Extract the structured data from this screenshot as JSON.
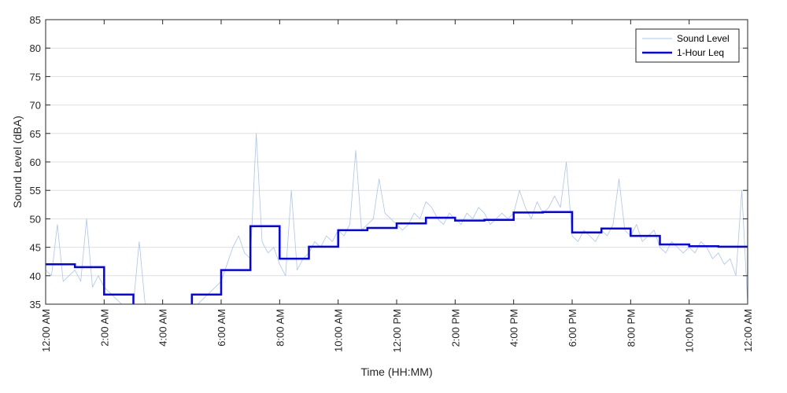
{
  "chart_data": {
    "type": "line",
    "title": "",
    "xlabel": "Time (HH:MM)",
    "ylabel": "Sound Level (dBA)",
    "ylim": [
      35,
      85
    ],
    "xlim_hours": [
      0,
      24
    ],
    "y_ticks": [
      "35",
      "40",
      "45",
      "50",
      "55",
      "60",
      "65",
      "70",
      "75",
      "80",
      "85"
    ],
    "x_ticks": [
      {
        "hour": 0,
        "label": "12:00 AM"
      },
      {
        "hour": 2,
        "label": "2:00 AM"
      },
      {
        "hour": 4,
        "label": "4:00 AM"
      },
      {
        "hour": 6,
        "label": "6:00 AM"
      },
      {
        "hour": 8,
        "label": "8:00 AM"
      },
      {
        "hour": 10,
        "label": "10:00 AM"
      },
      {
        "hour": 12,
        "label": "12:00 PM"
      },
      {
        "hour": 14,
        "label": "2:00 PM"
      },
      {
        "hour": 16,
        "label": "4:00 PM"
      },
      {
        "hour": 18,
        "label": "6:00 PM"
      },
      {
        "hour": 20,
        "label": "8:00 PM"
      },
      {
        "hour": 22,
        "label": "10:00 PM"
      },
      {
        "hour": 24,
        "label": "12:00 AM"
      }
    ],
    "grid": "horizontal",
    "legend_position": "top-right",
    "series": [
      {
        "name": "Sound Level",
        "color": "#a9c4f5",
        "style": "thin-line",
        "x_hours": [
          0,
          0.2,
          0.4,
          0.6,
          0.8,
          1,
          1.2,
          1.4,
          1.6,
          1.8,
          2,
          2.2,
          2.4,
          2.6,
          2.8,
          3,
          3.2,
          3.4,
          3.6,
          3.8,
          4,
          4.2,
          4.4,
          4.6,
          4.8,
          5,
          5.2,
          5.4,
          5.6,
          5.8,
          6,
          6.2,
          6.4,
          6.6,
          6.8,
          7,
          7.2,
          7.4,
          7.6,
          7.8,
          8,
          8.2,
          8.4,
          8.6,
          8.8,
          9,
          9.2,
          9.4,
          9.6,
          9.8,
          10,
          10.2,
          10.4,
          10.6,
          10.8,
          11,
          11.2,
          11.4,
          11.6,
          11.8,
          12,
          12.2,
          12.4,
          12.6,
          12.8,
          13,
          13.2,
          13.4,
          13.6,
          13.8,
          14,
          14.2,
          14.4,
          14.6,
          14.8,
          15,
          15.2,
          15.4,
          15.6,
          15.8,
          16,
          16.2,
          16.4,
          16.6,
          16.8,
          17,
          17.2,
          17.4,
          17.6,
          17.8,
          18,
          18.2,
          18.4,
          18.6,
          18.8,
          19,
          19.2,
          19.4,
          19.6,
          19.8,
          20,
          20.2,
          20.4,
          20.6,
          20.8,
          21,
          21.2,
          21.4,
          21.6,
          21.8,
          22,
          22.2,
          22.4,
          22.6,
          22.8,
          23,
          23.2,
          23.4,
          23.6,
          23.8,
          24
        ],
        "values": [
          41,
          40,
          49,
          39,
          40,
          41,
          39,
          50,
          38,
          40,
          38,
          37,
          36,
          35,
          35,
          35,
          46,
          35,
          35,
          35,
          35,
          35,
          35,
          35,
          35,
          35,
          35,
          36,
          37,
          38,
          39,
          42,
          45,
          47,
          44,
          43,
          65,
          46,
          44,
          45,
          42,
          40,
          55,
          41,
          43,
          44,
          46,
          45,
          47,
          46,
          48,
          47,
          49,
          62,
          48,
          49,
          50,
          57,
          51,
          50,
          49,
          48,
          49,
          51,
          50,
          53,
          52,
          50,
          49,
          51,
          50,
          49,
          51,
          50,
          52,
          51,
          49,
          50,
          51,
          50,
          51,
          55,
          52,
          50,
          53,
          51,
          52,
          54,
          52,
          60,
          47,
          46,
          48,
          47,
          46,
          48,
          47,
          49,
          57,
          48,
          47,
          49,
          46,
          47,
          48,
          45,
          44,
          46,
          45,
          44,
          45,
          44,
          46,
          45,
          43,
          44,
          42,
          43,
          40,
          55,
          35
        ]
      },
      {
        "name": "1-Hour Leq",
        "color": "#0000ff",
        "style": "step",
        "hour_starts": [
          0,
          1,
          2,
          3,
          4,
          5,
          6,
          7,
          8,
          9,
          10,
          11,
          12,
          13,
          14,
          15,
          16,
          17,
          18,
          19,
          20,
          21,
          22,
          23
        ],
        "values": [
          42.0,
          41.5,
          36.7,
          34.5,
          34.5,
          36.7,
          41.0,
          48.7,
          43.0,
          45.1,
          48.0,
          48.4,
          49.2,
          50.2,
          49.7,
          49.8,
          51.1,
          51.2,
          47.6,
          48.3,
          47.0,
          45.5,
          45.2,
          45.1
        ]
      }
    ]
  }
}
